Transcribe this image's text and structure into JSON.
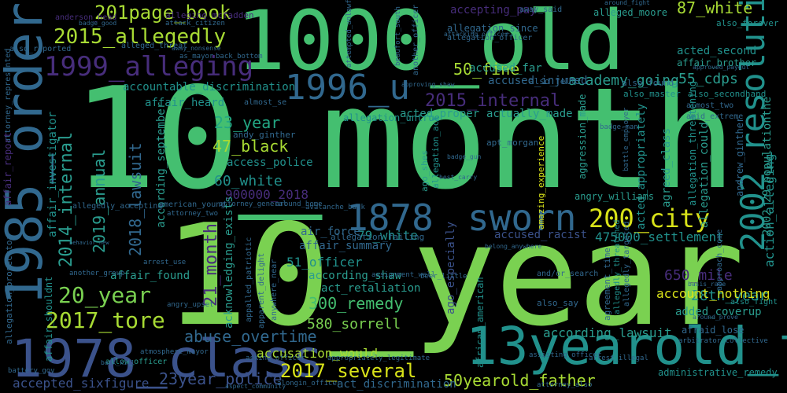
{
  "words": {
    "w_10_month": "10_month",
    "w_10_year": "10_year",
    "w_1000_old": "1000_old",
    "w_1978_class": "1978_class",
    "w_13yearold_tyre": "13yearold_tyre",
    "w_1985_ordering": "1985_ordering",
    "w_1878": "1878",
    "w_sworn": "sworn",
    "w_1996_u": "1996_u",
    "w_2002_resolution": "2002_resolution",
    "w_2015_allegedly": "2015_allegedly",
    "w_1999_alleging": "1999_alleging",
    "w_201page_book": "201page_book",
    "w_200_city": "200_city",
    "w_2015_internal": "2015_internal",
    "w_20_year": "20_year",
    "w_2017_tore": "2017_tore",
    "w_2017_several": "2017_several",
    "w_87_white": "87_white",
    "w_55_cdps": "55_cdps",
    "w_50_fine": "50_fine",
    "w_21_month": "21_month",
    "w_2014_internal": "2014_internal",
    "w_2019_annual": "2019_annual",
    "w_2018_lawsuit": "2018_lawsuit",
    "w_47_black": "47_black",
    "w_23_year": "23_year",
    "w_60_white": "60_white",
    "w_900000_2018": "900000_2018",
    "w_300_remedy": "300_remedy",
    "w_580_sorrell": "580_sorrell",
    "w_28th_year": "28th_year",
    "w_650_mile": "650_mile",
    "w_475000_settlement": "475000_settlement",
    "w_79_white": "79_white",
    "w_51_officer": "51_officer",
    "w_50yearold_father": "50yearold_father",
    "w_23year_police": "23year_police",
    "w_accepted_sixfigure": "accepted_sixfigure",
    "w_abuse_overtime": "abuse_overtime",
    "w_accusation_would": "accusation_would",
    "w_act_discrimination": "act_discrimination",
    "w_accountable_discrimination": "accountable_discrimination",
    "w_academy_going": "academy_going",
    "w_acted_proper": "acted_proper",
    "w_actually_made": "actually_made",
    "w_accused_injured": "accused_injured",
    "w_accused_far": "accused_far",
    "w_accepting_pay": "accepting_pay",
    "w_acted_second": "acted_second",
    "w_affair_brother": "affair_brother",
    "w_access_police": "access_police",
    "w_affair_summary": "affair_summary",
    "w_according_shaw": "according_shaw",
    "w_act_retaliation": "act_retaliation",
    "w_according_lawsuit": "according_lawsuit",
    "w_added_coverup": "added_coverup",
    "w_account_nothing": "account_nothing",
    "w_administrative_remedy": "administrative_remedy",
    "w_action_alleging": "action_alleging",
    "w_acted_appropriately": "acted_appropriately",
    "w_agreed_class": "agreed_class",
    "w_accused_racist": "accused_racist",
    "w_affair_found": "affair_found",
    "w_air_force": "air_force",
    "w_acknowledging_exists": "acknowledging_exists",
    "w_according_september": "according_september",
    "w_2002_29_populationthe": "2002_29_populationthe",
    "w_affair_investigator": "affair_investigator",
    "w_affair_shouldnt": "affair_shouldnt",
    "w_allegation_could": "allegation_could",
    "w_affair_heard": "affair_heard",
    "w_allegation_untrue": "allegation_untrue",
    "w_alleged_moore": "alleged_moore",
    "w_allegation_since": "allegation_since",
    "w_allegation_officer": "allegation_officer",
    "w_allegation_failing": "allegation_failing",
    "w_alleging_mcfadden": "alleging_mcfadden",
    "w_away_said": "away_said",
    "w_also_forever": "also_forever",
    "w_also_felt": "also_felt",
    "w_also_found": "also_found",
    "w_also_master": "also_master",
    "w_also_secondhand": "also_secondhand",
    "w_almost_two": "almost_two",
    "w_amid_extreme": "amid_extreme",
    "w_andrew_ginther": "andrew_ginther",
    "w_andy_ginther": "andy_ginther",
    "w_angry_williams": "angry_williams",
    "w_amazing_experience": "amazing_experience",
    "w_aggression_made": "aggression_made",
    "w_ago_especially": "ago_especially",
    "w_allegation_act": "allegation_act",
    "w_ago_shes": "ago_shes",
    "w_apt_morgan": "apt_morgan",
    "w_allegation_threatening": "allegation_threatening",
    "w_approach_come": "approach_come",
    "w_attacking_officer": "attacking_officer",
    "w_around_fight": "around_fight",
    "w_afraid_lose": "afraid_lose",
    "w_agreement_time": "agreement_time",
    "w_allegedly_threatened": "allegedly_threatened",
    "w_allegedly_targeted": "allegedly_targeted",
    "w_also_say": "also_say",
    "w_also_fight": "also_fight",
    "w_african_american": "african_american",
    "w_and_or_search": "and/or_search",
    "w_anywhere_near": "anywhere_near",
    "w_apparent_delight": "apparent_delight",
    "w_appalled_patriotic": "appalled_patriotic",
    "w_american_young": "american_young",
    "w_attorney_two": "attorney_two",
    "w_attorney_general": "attorney_general",
    "w_around_home": "around_home",
    "w_avalanche_back": "avalanche_back",
    "w_another_group": "another_group",
    "w_allow_officer": "allow_officer",
    "w_atmosphere_mayor": "atmosphere_mayor",
    "w_asking_officer": "asking_officer",
    "w_alongin_officer": "alongin_officer",
    "w_assisting_officer": "assisting_officer",
    "w_arrest_illegal": "arrest_illegal",
    "w_attorney_also": "attorney_also",
    "w_arbitrator_collective": "arbitrator_collective",
    "w_aspect_community": "aspect_community",
    "w_back_kill": "back_kill",
    "w_battery_gov": "battery_gov",
    "w_allegation_prosecutor": "allegation_prosecutor",
    "w_attorney_represented": "attorney_represented",
    "w_affair_report": "affair_report",
    "w_allegedly_accepting": "allegedly_accepting",
    "w_anderson_head": "anderson_head",
    "w_also_reported": "also_reported",
    "w_alleged_threat": "alleged_threat",
    "w_attack_citizen": "attack_citizen",
    "w_badge_good": "badge_good",
    "w_away_nonsense": "away_nonsense",
    "w_as_mayor": "as_mayor",
    "w_back_bottom": "back_bottom",
    "w_attempted_unlawful": "attempted_unlawful",
    "w_beaufort_south": "beaufort_south",
    "w_another_officer": "another_officer",
    "w_approving_shaw": "approving_shaw",
    "w_best_carry": "best_carry",
    "w_assignment_well": "assignment_well",
    "w_beer_little": "beer_little",
    "w_belong_anywhere": "belong_anywhere",
    "w_arrest_use": "arrest_use",
    "w_badge_man": "badge_man",
    "w_battle_employer": "battle_employer",
    "w_approved_payout": "approved_payout",
    "w_badge_gun": "badge_gun",
    "w_appropriately_legitimate": "appropriately_legitimate",
    "w_angry_upset": "angry_upset",
    "w_attorney_two2": "attorney_two",
    "w_basis_race": "basis_race",
    "w_around_prove": "around_prove",
    "w_behavior_new": "behavior_new",
    "w_almost_se": "almost_se"
  }
}
